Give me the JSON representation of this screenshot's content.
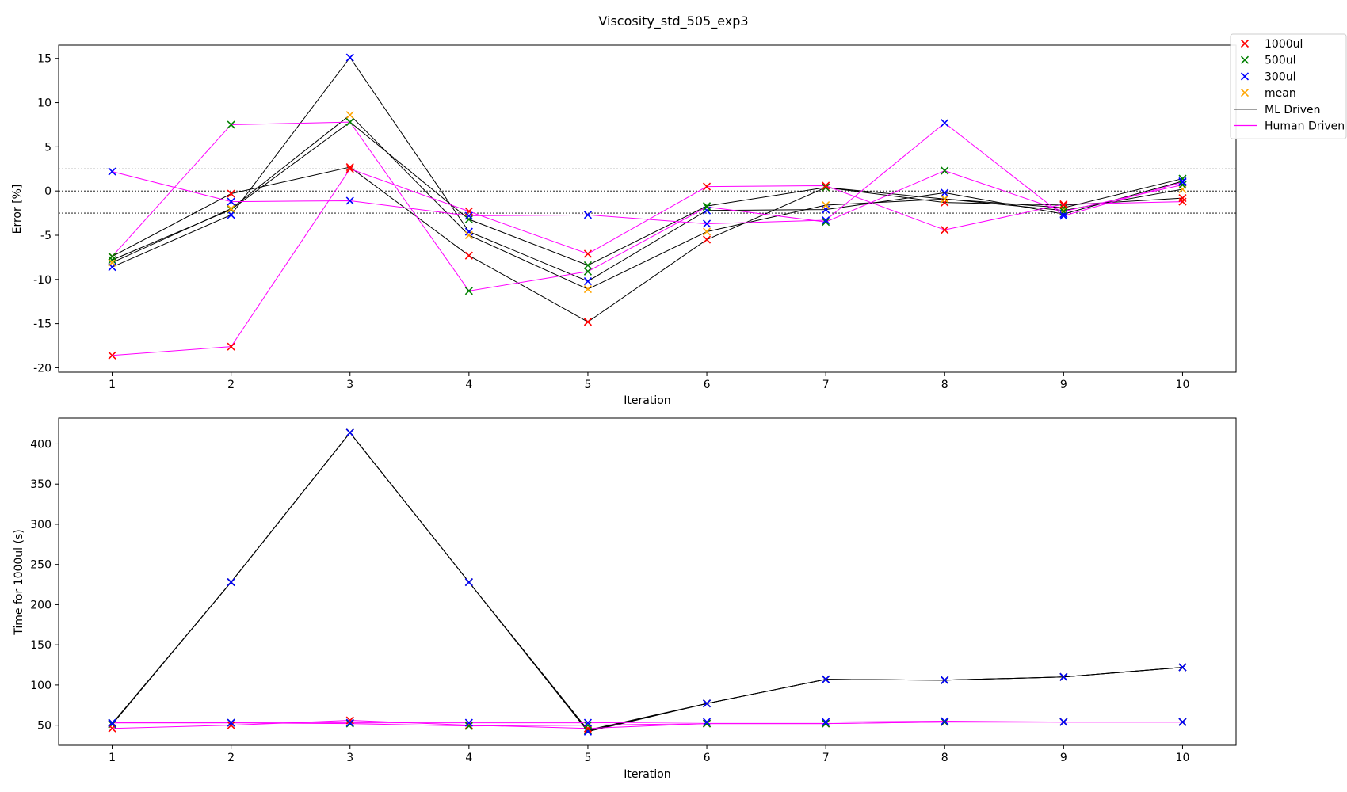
{
  "figure": {
    "title": "Viscosity_std_505_exp3"
  },
  "colors": {
    "c1000ul": "#ff0000",
    "c500ul": "#008000",
    "c300ul": "#0000ff",
    "mean": "#ffa500",
    "ml": "#000000",
    "human": "#ff00ff"
  },
  "legend": {
    "placement": "top-right (outside)",
    "entries": [
      {
        "label": "1000ul",
        "kind": "marker",
        "color_key": "c1000ul"
      },
      {
        "label": "500ul",
        "kind": "marker",
        "color_key": "c500ul"
      },
      {
        "label": "300ul",
        "kind": "marker",
        "color_key": "c300ul"
      },
      {
        "label": "mean",
        "kind": "marker",
        "color_key": "mean"
      },
      {
        "label": "ML Driven",
        "kind": "line",
        "color_key": "ml"
      },
      {
        "label": "Human Driven",
        "kind": "line",
        "color_key": "human"
      }
    ]
  },
  "chart_data": [
    {
      "type": "line",
      "xlabel": "Iteration",
      "ylabel": "Error [%]",
      "xlim": [
        0.55,
        10.45
      ],
      "ylim": [
        -20.5,
        16.5
      ],
      "x": [
        1,
        2,
        3,
        4,
        5,
        6,
        7,
        8,
        9,
        10
      ],
      "yticks": [
        -20,
        -15,
        -10,
        -5,
        0,
        5,
        10,
        15
      ],
      "hlines": [
        {
          "y": 2.5,
          "style": "dotted"
        },
        {
          "y": 0,
          "style": "dotted"
        },
        {
          "y": -2.5,
          "style": "dotted"
        }
      ],
      "ml": {
        "c1000ul": [
          -7.4,
          -0.3,
          2.7,
          -7.3,
          -14.8,
          -5.5,
          0.4,
          -1.3,
          -1.6,
          -0.8
        ],
        "c500ul": [
          -7.8,
          -2.1,
          7.8,
          -3.2,
          -8.4,
          -1.7,
          0.4,
          -0.9,
          -1.9,
          1.4
        ],
        "c300ul": [
          -8.6,
          -2.7,
          15.1,
          -4.6,
          -10.2,
          -2.2,
          -2.1,
          -0.2,
          -2.6,
          1.1
        ],
        "mean": [
          -8.1,
          -2.0,
          8.6,
          -5.0,
          -11.1,
          -4.6,
          -1.6,
          -0.9,
          -2.2,
          0.2
        ]
      },
      "human": {
        "c1000ul": [
          -18.6,
          -17.6,
          2.5,
          -2.3,
          -7.1,
          0.5,
          0.6,
          -4.4,
          -1.5,
          -1.2
        ],
        "c500ul": [
          -7.4,
          7.5,
          7.8,
          -11.3,
          -9.1,
          -1.8,
          -3.5,
          2.3,
          -2.3,
          0.7
        ],
        "c300ul": [
          2.2,
          -1.2,
          -1.1,
          -2.8,
          -2.7,
          -3.7,
          -3.3,
          7.7,
          -2.8,
          1.0
        ]
      }
    },
    {
      "type": "line",
      "xlabel": "Iteration",
      "ylabel": "Time for 1000ul (s)",
      "xlim": [
        0.55,
        10.45
      ],
      "ylim": [
        25,
        432
      ],
      "x": [
        1,
        2,
        3,
        4,
        5,
        6,
        7,
        8,
        9,
        10
      ],
      "yticks": [
        50,
        100,
        150,
        200,
        250,
        300,
        350,
        400
      ],
      "ml": {
        "c1000ul": [
          51,
          228,
          414,
          228,
          44,
          77,
          107,
          106,
          110,
          122
        ],
        "c500ul": [
          51,
          228,
          414,
          228,
          43,
          77,
          107,
          106,
          110,
          122
        ],
        "c300ul": [
          52,
          228,
          414,
          228,
          42,
          77,
          107,
          106,
          110,
          122
        ]
      },
      "human": {
        "c1000ul": [
          46,
          50,
          56,
          50,
          46,
          52,
          52,
          54,
          54,
          54
        ],
        "c500ul": [
          53,
          53,
          52,
          49,
          50,
          52,
          52,
          54,
          54,
          54
        ],
        "c300ul": [
          53,
          53,
          53,
          53,
          53,
          54,
          54,
          55,
          54,
          54
        ]
      }
    }
  ]
}
